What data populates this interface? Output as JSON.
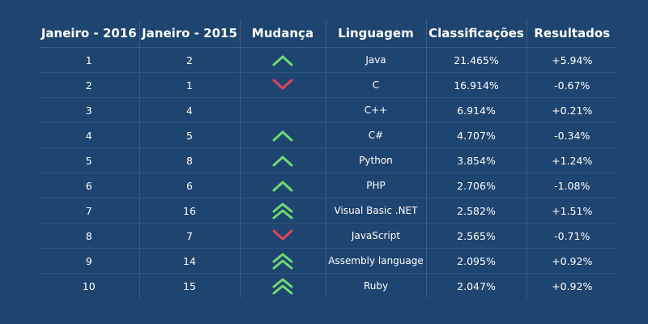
{
  "colors": {
    "background": "#1e4470",
    "up": "#6fdc6f",
    "down": "#e2445c",
    "grid": "#3a5e8a"
  },
  "table": {
    "headers": [
      "Janeiro - 2016",
      "Janeiro - 2015",
      "Mudança",
      "Linguagem",
      "Classificações",
      "Resultados"
    ],
    "rows": [
      {
        "jan2016": "1",
        "jan2015": "2",
        "change": "up",
        "language": "Java",
        "rating": "21.465%",
        "result": "+5.94%"
      },
      {
        "jan2016": "2",
        "jan2015": "1",
        "change": "down",
        "language": "C",
        "rating": "16.914%",
        "result": "-0.67%"
      },
      {
        "jan2016": "3",
        "jan2015": "4",
        "change": "none",
        "language": "C++",
        "rating": "6.914%",
        "result": "+0.21%"
      },
      {
        "jan2016": "4",
        "jan2015": "5",
        "change": "up",
        "language": "C#",
        "rating": "4.707%",
        "result": "-0.34%"
      },
      {
        "jan2016": "5",
        "jan2015": "8",
        "change": "up",
        "language": "Python",
        "rating": "3.854%",
        "result": "+1.24%"
      },
      {
        "jan2016": "6",
        "jan2015": "6",
        "change": "up",
        "language": "PHP",
        "rating": "2.706%",
        "result": "-1.08%"
      },
      {
        "jan2016": "7",
        "jan2015": "16",
        "change": "double-up",
        "language": "Visual Basic .NET",
        "rating": "2.582%",
        "result": "+1.51%"
      },
      {
        "jan2016": "8",
        "jan2015": "7",
        "change": "down",
        "language": "JavaScript",
        "rating": "2.565%",
        "result": "-0.71%"
      },
      {
        "jan2016": "9",
        "jan2015": "14",
        "change": "double-up",
        "language": "Assembly language",
        "rating": "2.095%",
        "result": "+0.92%"
      },
      {
        "jan2016": "10",
        "jan2015": "15",
        "change": "double-up",
        "language": "Ruby",
        "rating": "2.047%",
        "result": "+0.92%"
      }
    ]
  }
}
